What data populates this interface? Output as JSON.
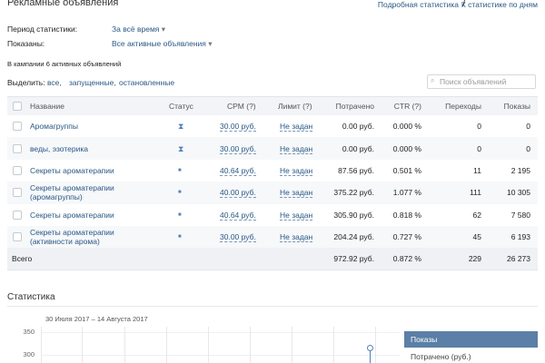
{
  "header": {
    "title": "Рекламные объявления",
    "links": [
      "Подробная статистика",
      "К статистике по дням"
    ],
    "separator": "/"
  },
  "filters": [
    {
      "label": "Период статистики:",
      "value": "За всё время"
    },
    {
      "label": "Показаны:",
      "value": "Все активные объявления"
    }
  ],
  "summary": "В кампании 6 активных объявлений",
  "select": {
    "label": "Выделить:",
    "options": [
      "все,",
      "запущенные,",
      "остановленные"
    ]
  },
  "search_placeholder": "Поиск объявлений",
  "table": {
    "columns": [
      "Название",
      "Статус",
      "CPM (?)",
      "Лимит (?)",
      "Потрачено",
      "CTR (?)",
      "Переходы",
      "Показы"
    ],
    "rows": [
      {
        "name": [
          "Аромагруппы"
        ],
        "cpm": "30.00 руб.",
        "limit": "Не задан",
        "spent": "0.00 руб.",
        "ctr": "0.000 %",
        "clicks": "0",
        "impressions": "0"
      },
      {
        "name": [
          "веды, эзотерика"
        ],
        "cpm": "30.00 руб.",
        "limit": "Не задан",
        "spent": "0.00 руб.",
        "ctr": "0.000 %",
        "clicks": "0",
        "impressions": "0"
      },
      {
        "name": [
          "Секреты ароматерапии"
        ],
        "cpm": "40.64 руб.",
        "limit": "Не задан",
        "spent": "87.56 руб.",
        "ctr": "0.501 %",
        "clicks": "11",
        "impressions": "2 195"
      },
      {
        "name": [
          "Секреты ароматерапии",
          "(аромагруппы)"
        ],
        "cpm": "40.00 руб.",
        "limit": "Не задан",
        "spent": "375.22 руб.",
        "ctr": "1.077 %",
        "clicks": "111",
        "impressions": "10 305"
      },
      {
        "name": [
          "Секреты ароматерапии"
        ],
        "cpm": "40.64 руб.",
        "limit": "Не задан",
        "spent": "305.90 руб.",
        "ctr": "0.818 %",
        "clicks": "62",
        "impressions": "7 580"
      },
      {
        "name": [
          "Секреты ароматерапии",
          "(активности арома)"
        ],
        "cpm": "30.00 руб.",
        "limit": "Не задан",
        "spent": "204.24 руб.",
        "ctr": "0.727 %",
        "clicks": "45",
        "impressions": "6 193"
      }
    ],
    "total": {
      "label": "Всего",
      "spent": "972.92 руб.",
      "ctr": "0.872 %",
      "clicks": "229",
      "impressions": "26 273"
    }
  },
  "stats": {
    "title": "Статистика",
    "date_range": "30 Июля 2017 – 14 Августа 2017",
    "yticks": [
      350,
      300
    ],
    "legend": [
      "Показы",
      "Потрачено (руб.)"
    ]
  }
}
